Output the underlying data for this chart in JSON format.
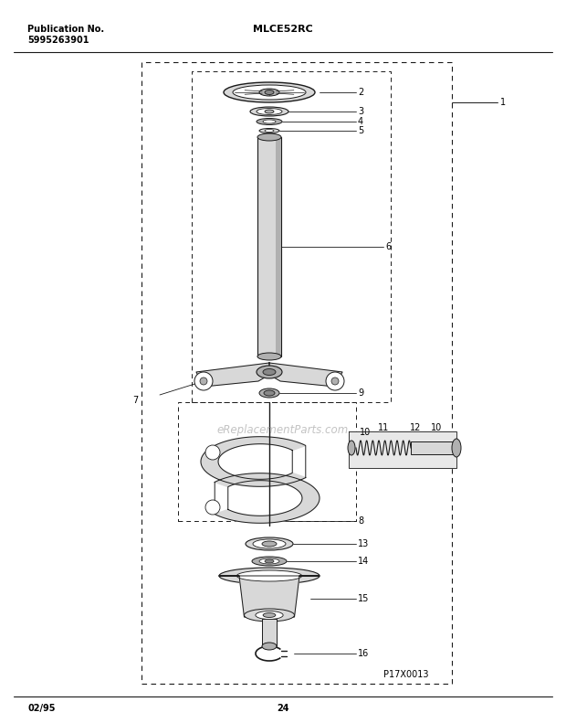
{
  "bg_color": "#ffffff",
  "page_width": 6.2,
  "page_height": 7.91,
  "pub_no_label": "Publication No.",
  "pub_no": "5995263901",
  "model": "MLCE52RC",
  "date": "02/95",
  "page_num": "24",
  "diagram_code": "P17X0013",
  "watermark": "eReplacementParts.com",
  "line_color": "#1a1a1a",
  "fill_light": "#d8d8d8",
  "fill_mid": "#b0b0b0",
  "fill_dark": "#888888",
  "fill_white": "#ffffff"
}
